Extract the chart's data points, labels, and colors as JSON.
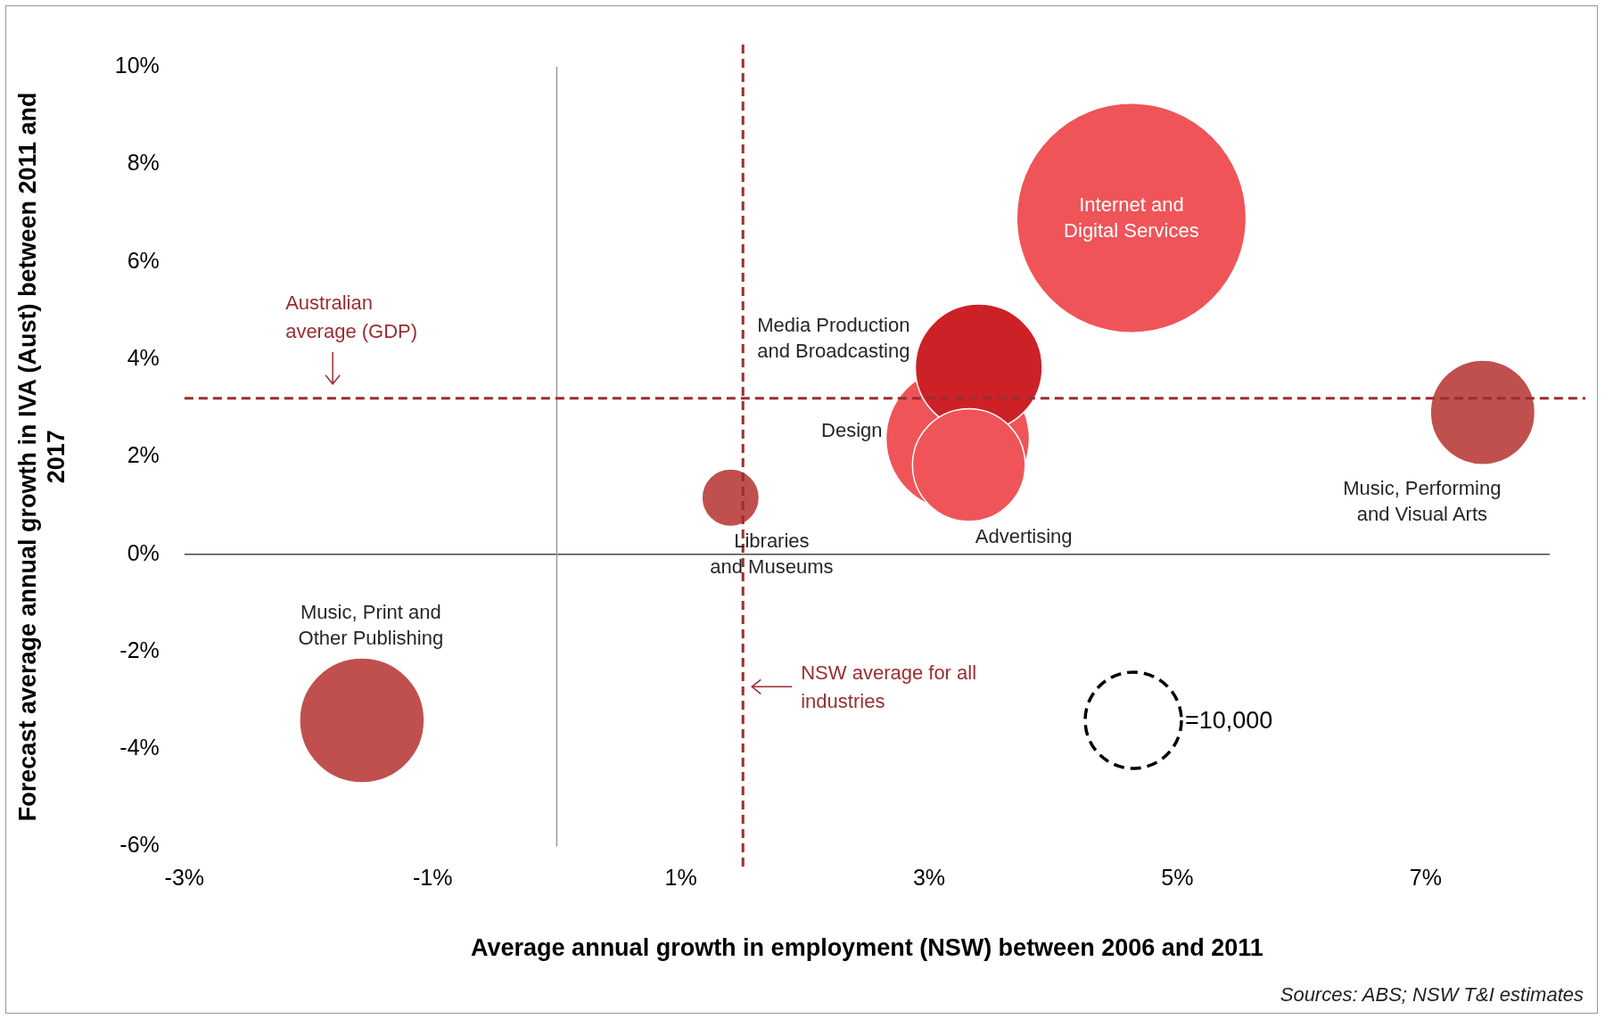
{
  "chart_data": {
    "type": "bubble",
    "xlabel": "Average annual growth in employment (NSW) between 2006 and 2011",
    "ylabel": "Forecast average annual growth in IVA (Aust) between 2011 and 2017",
    "xlim": [
      -3,
      8
    ],
    "xticks": [
      {
        "value": -3,
        "label": "-3%"
      },
      {
        "value": -1,
        "label": "-1%"
      },
      {
        "value": 1,
        "label": "1%"
      },
      {
        "value": 3,
        "label": "3%"
      },
      {
        "value": 5,
        "label": "5%"
      },
      {
        "value": 7,
        "label": "7%"
      }
    ],
    "ylim": [
      -6,
      10
    ],
    "yticks": [
      {
        "value": -6,
        "label": "-6%"
      },
      {
        "value": -4,
        "label": "-4%"
      },
      {
        "value": -2,
        "label": "-2%"
      },
      {
        "value": 0,
        "label": "0%"
      },
      {
        "value": 2,
        "label": "2%"
      },
      {
        "value": 4,
        "label": "4%"
      },
      {
        "value": 6,
        "label": "6%"
      },
      {
        "value": 8,
        "label": "8%"
      },
      {
        "value": 10,
        "label": "10%"
      }
    ],
    "grid": false,
    "legend": false,
    "size_legend": [
      {
        "value": 10000,
        "label": "=10,000"
      }
    ],
    "series": [
      {
        "name": "Internet and Digital Services",
        "color": "#ef5458",
        "x": [
          4.63
        ],
        "values": [
          6.9
        ],
        "sizes": [
          56800
        ]
      },
      {
        "name": "Advertising",
        "color": "#ef5458",
        "x": [
          3.32
        ],
        "values": [
          1.83
        ],
        "sizes": [
          13700
        ]
      },
      {
        "name": "Media Production and Broadcasting",
        "color": "#cd2128",
        "x": [
          3.4
        ],
        "values": [
          3.83
        ],
        "sizes": [
          17400
        ]
      },
      {
        "name": "Design",
        "color": "#ef5458",
        "x": [
          3.23
        ],
        "values": [
          2.37
        ],
        "sizes": [
          22200
        ]
      },
      {
        "name": "Libraries and Museums",
        "color": "#c0504d",
        "x": [
          1.4
        ],
        "values": [
          1.16
        ],
        "sizes": [
          3550
        ]
      },
      {
        "name": "Music, Performing and Visual Arts",
        "color": "#c0504d",
        "x": [
          7.46
        ],
        "values": [
          2.91
        ],
        "sizes": [
          11800
        ]
      },
      {
        "name": "Music, Print and Other Publishing",
        "color": "#c0504d",
        "x": [
          -1.57
        ],
        "values": [
          -3.41
        ],
        "sizes": [
          16800
        ]
      }
    ],
    "ref_lines": [
      {
        "axis": "y",
        "value": 0,
        "color": "#444444",
        "line_style": "solid"
      },
      {
        "axis": "x",
        "value": 0,
        "color": "#999999",
        "line_style": "solid"
      },
      {
        "axis": "y",
        "value": 3.2,
        "label": "Australian average (GDP)",
        "color": "#9b2d30",
        "line_style": "dashed"
      },
      {
        "axis": "x",
        "value": 1.5,
        "label": "NSW average for all industries",
        "color": "#9b2d30",
        "line_style": "dashed"
      }
    ],
    "annotations": [
      "Sources: ABS; NSW T&I estimates"
    ]
  }
}
